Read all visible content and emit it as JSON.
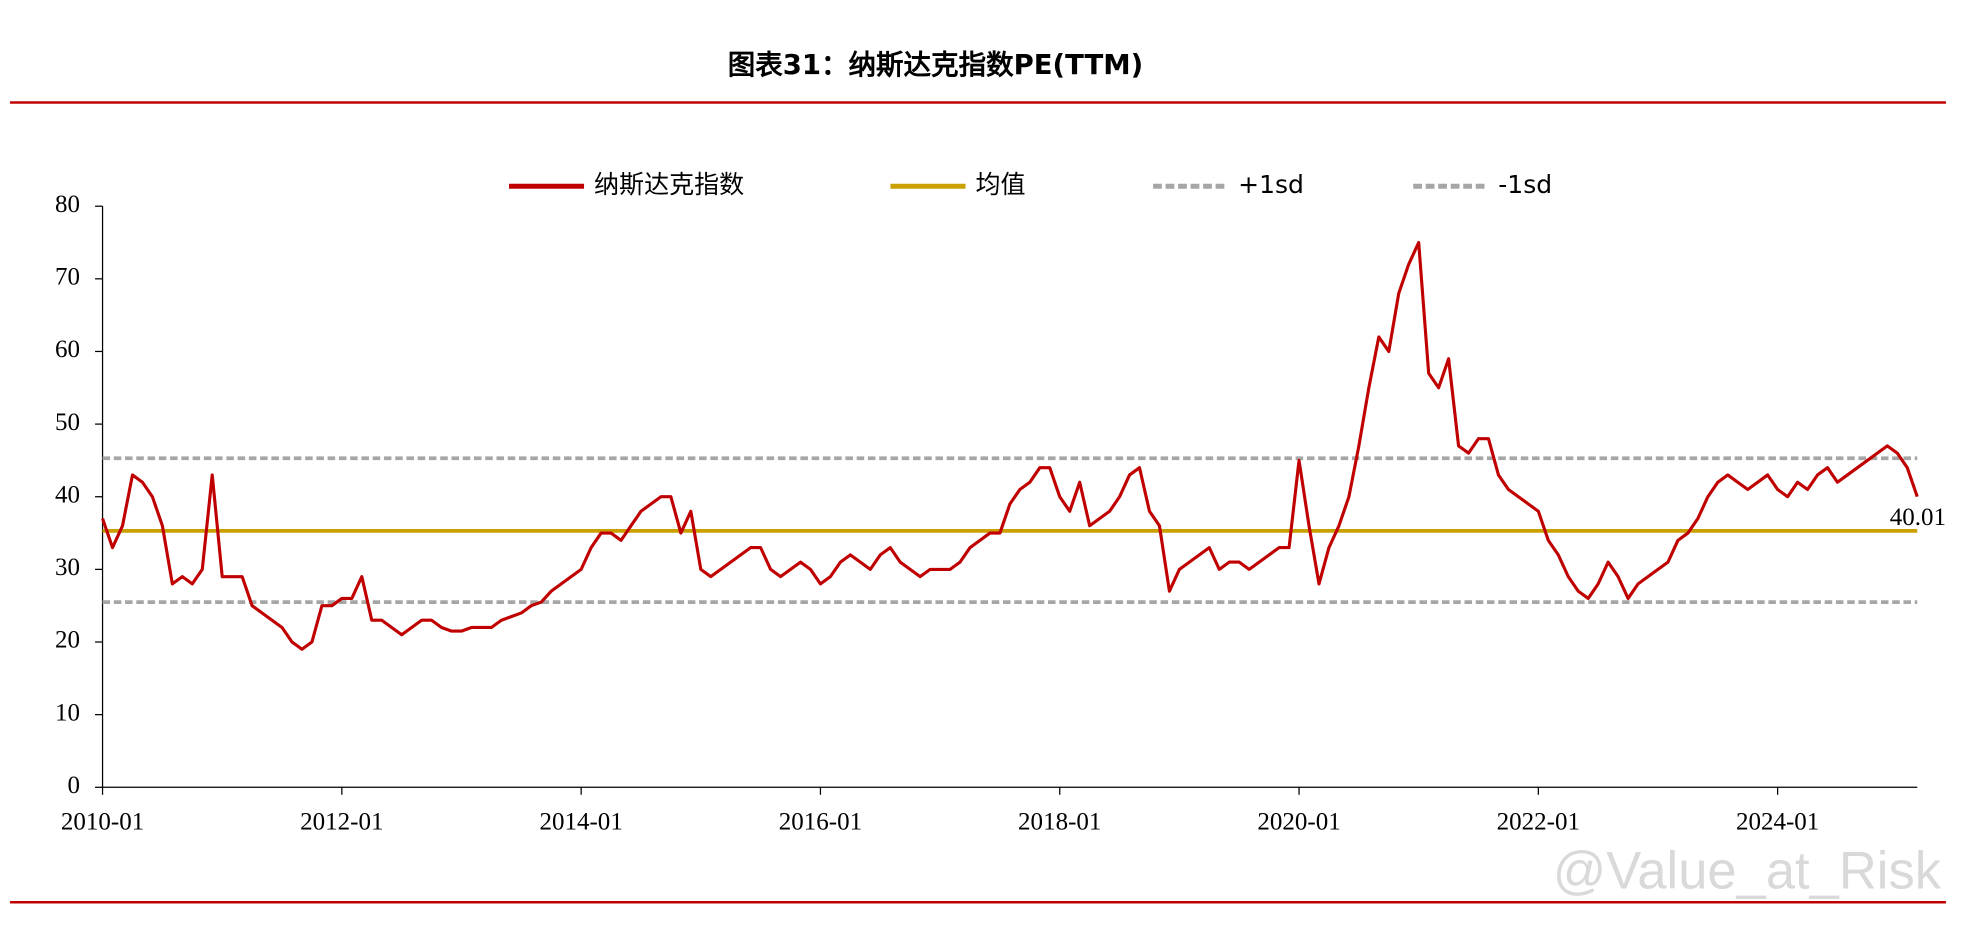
{
  "chart_data": {
    "type": "line",
    "title": "图表31：纳斯达克指数PE(TTM)",
    "watermark": "@Value_at_Risk",
    "x": [
      "2010-01",
      "2010-02",
      "2010-03",
      "2010-04",
      "2010-05",
      "2010-06",
      "2010-07",
      "2010-08",
      "2010-09",
      "2010-10",
      "2010-11",
      "2010-12",
      "2011-01",
      "2011-02",
      "2011-03",
      "2011-04",
      "2011-05",
      "2011-06",
      "2011-07",
      "2011-08",
      "2011-09",
      "2011-10",
      "2011-11",
      "2011-12",
      "2012-01",
      "2012-02",
      "2012-03",
      "2012-04",
      "2012-05",
      "2012-06",
      "2012-07",
      "2012-08",
      "2012-09",
      "2012-10",
      "2012-11",
      "2012-12",
      "2013-01",
      "2013-02",
      "2013-03",
      "2013-04",
      "2013-05",
      "2013-06",
      "2013-07",
      "2013-08",
      "2013-09",
      "2013-10",
      "2013-11",
      "2013-12",
      "2014-01",
      "2014-02",
      "2014-03",
      "2014-04",
      "2014-05",
      "2014-06",
      "2014-07",
      "2014-08",
      "2014-09",
      "2014-10",
      "2014-11",
      "2014-12",
      "2015-01",
      "2015-02",
      "2015-03",
      "2015-04",
      "2015-05",
      "2015-06",
      "2015-07",
      "2015-08",
      "2015-09",
      "2015-10",
      "2015-11",
      "2015-12",
      "2016-01",
      "2016-02",
      "2016-03",
      "2016-04",
      "2016-05",
      "2016-06",
      "2016-07",
      "2016-08",
      "2016-09",
      "2016-10",
      "2016-11",
      "2016-12",
      "2017-01",
      "2017-02",
      "2017-03",
      "2017-04",
      "2017-05",
      "2017-06",
      "2017-07",
      "2017-08",
      "2017-09",
      "2017-10",
      "2017-11",
      "2017-12",
      "2018-01",
      "2018-02",
      "2018-03",
      "2018-04",
      "2018-05",
      "2018-06",
      "2018-07",
      "2018-08",
      "2018-09",
      "2018-10",
      "2018-11",
      "2018-12",
      "2019-01",
      "2019-02",
      "2019-03",
      "2019-04",
      "2019-05",
      "2019-06",
      "2019-07",
      "2019-08",
      "2019-09",
      "2019-10",
      "2019-11",
      "2019-12",
      "2020-01",
      "2020-02",
      "2020-03",
      "2020-04",
      "2020-05",
      "2020-06",
      "2020-07",
      "2020-08",
      "2020-09",
      "2020-10",
      "2020-11",
      "2020-12",
      "2021-01",
      "2021-02",
      "2021-03",
      "2021-04",
      "2021-05",
      "2021-06",
      "2021-07",
      "2021-08",
      "2021-09",
      "2021-10",
      "2021-11",
      "2021-12",
      "2022-01",
      "2022-02",
      "2022-03",
      "2022-04",
      "2022-05",
      "2022-06",
      "2022-07",
      "2022-08",
      "2022-09",
      "2022-10",
      "2022-11",
      "2022-12",
      "2023-01",
      "2023-02",
      "2023-03",
      "2023-04",
      "2023-05",
      "2023-06",
      "2023-07",
      "2023-08",
      "2023-09",
      "2023-10",
      "2023-11",
      "2023-12",
      "2024-01",
      "2024-02",
      "2024-03",
      "2024-04",
      "2024-05",
      "2024-06",
      "2024-07",
      "2024-08",
      "2024-09",
      "2024-10",
      "2024-11",
      "2024-12",
      "2025-01",
      "2025-02",
      "2025-03"
    ],
    "series": [
      {
        "name": "纳斯达克指数",
        "color": "#c00000",
        "values": [
          37,
          33,
          36,
          43,
          42,
          40,
          36,
          28,
          29,
          28,
          30,
          43,
          29,
          29,
          29,
          25,
          24,
          23,
          22,
          20,
          19,
          20,
          25,
          25,
          26,
          26,
          29,
          23,
          23,
          22,
          21,
          22,
          23,
          23,
          22,
          21.5,
          21.5,
          22,
          22,
          22,
          23,
          23.5,
          24,
          25,
          25.5,
          27,
          28,
          29,
          30,
          33,
          35,
          35,
          34,
          36,
          38,
          39,
          40,
          40,
          35,
          38,
          30,
          29,
          30,
          31,
          32,
          33,
          33,
          30,
          29,
          30,
          31,
          30,
          28,
          29,
          31,
          32,
          31,
          30,
          32,
          33,
          31,
          30,
          29,
          30,
          30,
          30,
          31,
          33,
          34,
          35,
          35,
          39,
          41,
          42,
          44,
          44,
          40,
          38,
          42,
          36,
          37,
          38,
          40,
          43,
          44,
          38,
          36,
          27,
          30,
          31,
          32,
          33,
          30,
          31,
          31,
          30,
          31,
          32,
          33,
          33,
          45,
          36,
          28,
          33,
          36,
          40,
          47,
          55,
          62,
          60,
          68,
          72,
          75,
          57,
          55,
          59,
          47,
          46,
          48,
          48,
          43,
          41,
          40,
          39,
          38,
          34,
          32,
          29,
          27,
          26,
          28,
          31,
          29,
          26,
          28,
          29,
          30,
          31,
          34,
          35,
          37,
          40,
          42,
          43,
          42,
          41,
          42,
          43,
          41,
          40,
          42,
          41,
          43,
          44,
          42,
          43,
          44,
          45,
          46,
          47,
          46,
          44,
          40.01
        ]
      },
      {
        "name": "均值",
        "color": "#c9a000",
        "value": 35.3
      },
      {
        "name": "+1sd",
        "color": "#a6a6a6",
        "value": 45.3,
        "dashed": true
      },
      {
        "name": "-1sd",
        "color": "#a6a6a6",
        "value": 25.5,
        "dashed": true
      }
    ],
    "xlim": [
      "2010-01",
      "2025-03"
    ],
    "xticks": [
      "2010-01",
      "2012-01",
      "2014-01",
      "2016-01",
      "2018-01",
      "2020-01",
      "2022-01",
      "2024-01"
    ],
    "ylim": [
      0,
      80
    ],
    "yticks": [
      0,
      10,
      20,
      30,
      40,
      50,
      60,
      70,
      80
    ]
  }
}
